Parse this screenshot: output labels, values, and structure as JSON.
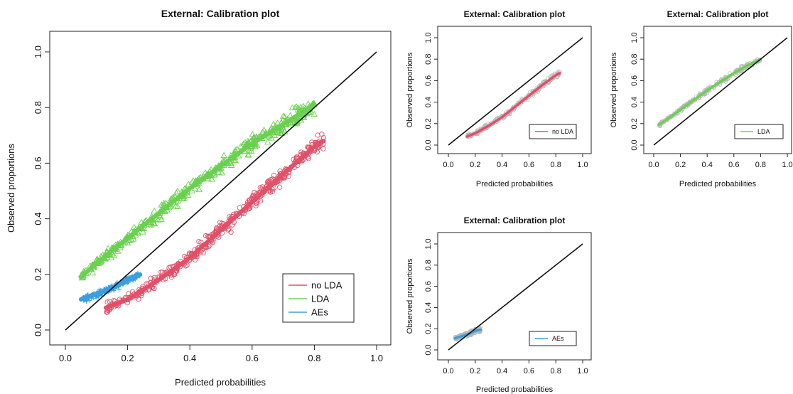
{
  "chart_data": [
    {
      "id": "main",
      "type": "scatter",
      "title": "External: Calibration plot",
      "xlabel": "Predicted  probabilities",
      "ylabel": "Observed proportions",
      "xlim": [
        0,
        1
      ],
      "ylim": [
        0,
        1
      ],
      "xticks": [
        0.0,
        0.2,
        0.4,
        0.6,
        0.8,
        1.0
      ],
      "yticks": [
        0.0,
        0.2,
        0.4,
        0.6,
        0.8,
        1.0
      ],
      "xtick_labels": [
        "0.0",
        "0.2",
        "0.4",
        "0.6",
        "0.8",
        "1.0"
      ],
      "ytick_labels": [
        "0.0",
        "0.2",
        "0.4",
        "0.6",
        "0.8",
        "1.0"
      ],
      "reference_line": [
        [
          0,
          0
        ],
        [
          1,
          1
        ]
      ],
      "legend": {
        "position": "bottom-right",
        "entries": [
          "no LDA",
          "LDA",
          "AEs"
        ]
      },
      "series": [
        {
          "name": "no LDA",
          "color": "#e05068",
          "marker": "circle",
          "x_range": [
            0.13,
            0.83
          ],
          "curve": [
            [
              0.13,
              0.08
            ],
            [
              0.2,
              0.11
            ],
            [
              0.3,
              0.18
            ],
            [
              0.4,
              0.26
            ],
            [
              0.5,
              0.36
            ],
            [
              0.6,
              0.46
            ],
            [
              0.7,
              0.56
            ],
            [
              0.8,
              0.66
            ],
            [
              0.83,
              0.68
            ]
          ]
        },
        {
          "name": "LDA",
          "color": "#6ad04f",
          "marker": "triangle",
          "x_range": [
            0.05,
            0.8
          ],
          "curve": [
            [
              0.05,
              0.19
            ],
            [
              0.1,
              0.24
            ],
            [
              0.2,
              0.33
            ],
            [
              0.3,
              0.42
            ],
            [
              0.4,
              0.51
            ],
            [
              0.5,
              0.59
            ],
            [
              0.6,
              0.67
            ],
            [
              0.7,
              0.74
            ],
            [
              0.8,
              0.81
            ]
          ]
        },
        {
          "name": "AEs",
          "color": "#3a9ee0",
          "marker": "plus",
          "x_range": [
            0.05,
            0.24
          ],
          "curve": [
            [
              0.05,
              0.11
            ],
            [
              0.1,
              0.13
            ],
            [
              0.15,
              0.15
            ],
            [
              0.2,
              0.18
            ],
            [
              0.24,
              0.2
            ]
          ]
        }
      ]
    },
    {
      "id": "nolda",
      "type": "scatter",
      "title": "External: Calibration plot",
      "xlabel": "Predicted probabilities",
      "ylabel": "Observed proportions",
      "xlim": [
        0,
        1
      ],
      "ylim": [
        0,
        1
      ],
      "xticks": [
        0.0,
        0.2,
        0.4,
        0.6,
        0.8,
        1.0
      ],
      "yticks": [
        0.0,
        0.2,
        0.4,
        0.6,
        0.8,
        1.0
      ],
      "xtick_labels": [
        "0.0",
        "0.2",
        "0.4",
        "0.6",
        "0.8",
        "1.0"
      ],
      "ytick_labels": [
        "0.0",
        "0.2",
        "0.4",
        "0.6",
        "0.8",
        "1.0"
      ],
      "reference_line": [
        [
          0,
          0
        ],
        [
          1,
          1
        ]
      ],
      "legend": {
        "position": "bottom-right",
        "entries": [
          "no LDA"
        ]
      },
      "scatter_color": "#b8b8b8",
      "series": [
        {
          "name": "no LDA",
          "color": "#e05068",
          "curve": [
            [
              0.14,
              0.08
            ],
            [
              0.2,
              0.11
            ],
            [
              0.3,
              0.18
            ],
            [
              0.4,
              0.26
            ],
            [
              0.5,
              0.36
            ],
            [
              0.6,
              0.46
            ],
            [
              0.7,
              0.56
            ],
            [
              0.8,
              0.65
            ],
            [
              0.83,
              0.67
            ]
          ]
        }
      ]
    },
    {
      "id": "lda",
      "type": "scatter",
      "title": "External: Calibration plot",
      "xlabel": "Predicted probabilities",
      "ylabel": "Observed proportions",
      "xlim": [
        0,
        1
      ],
      "ylim": [
        0,
        1
      ],
      "xticks": [
        0.0,
        0.2,
        0.4,
        0.6,
        0.8,
        1.0
      ],
      "yticks": [
        0.0,
        0.2,
        0.4,
        0.6,
        0.8,
        1.0
      ],
      "xtick_labels": [
        "0.0",
        "0.2",
        "0.4",
        "0.6",
        "0.8",
        "1.0"
      ],
      "ytick_labels": [
        "0.0",
        "0.2",
        "0.4",
        "0.6",
        "0.8",
        "1.0"
      ],
      "reference_line": [
        [
          0,
          0
        ],
        [
          1,
          1
        ]
      ],
      "legend": {
        "position": "bottom-right",
        "entries": [
          "LDA"
        ]
      },
      "scatter_color": "#b8b8b8",
      "series": [
        {
          "name": "LDA",
          "color": "#6ad04f",
          "curve": [
            [
              0.04,
              0.19
            ],
            [
              0.1,
              0.24
            ],
            [
              0.2,
              0.33
            ],
            [
              0.3,
              0.42
            ],
            [
              0.4,
              0.51
            ],
            [
              0.5,
              0.59
            ],
            [
              0.6,
              0.67
            ],
            [
              0.7,
              0.74
            ],
            [
              0.8,
              0.8
            ]
          ]
        }
      ]
    },
    {
      "id": "aes",
      "type": "scatter",
      "title": "External: Calibration plot",
      "xlabel": "Predicted probabilities",
      "ylabel": "Observed proportions",
      "xlim": [
        0,
        1
      ],
      "ylim": [
        0,
        1
      ],
      "xticks": [
        0.0,
        0.2,
        0.4,
        0.6,
        0.8,
        1.0
      ],
      "yticks": [
        0.0,
        0.2,
        0.4,
        0.6,
        0.8,
        1.0
      ],
      "xtick_labels": [
        "0.0",
        "0.2",
        "0.4",
        "0.6",
        "0.8",
        "1.0"
      ],
      "ytick_labels": [
        "0.0",
        "0.2",
        "0.4",
        "0.6",
        "0.8",
        "1.0"
      ],
      "reference_line": [
        [
          0,
          0
        ],
        [
          1,
          1
        ]
      ],
      "legend": {
        "position": "bottom-right",
        "entries": [
          "AEs"
        ]
      },
      "scatter_color": "#b8b8b8",
      "series": [
        {
          "name": "AEs",
          "color": "#3a9ee0",
          "curve": [
            [
              0.05,
              0.11
            ],
            [
              0.1,
              0.13
            ],
            [
              0.15,
              0.15
            ],
            [
              0.2,
              0.18
            ],
            [
              0.24,
              0.19
            ]
          ]
        }
      ]
    }
  ]
}
